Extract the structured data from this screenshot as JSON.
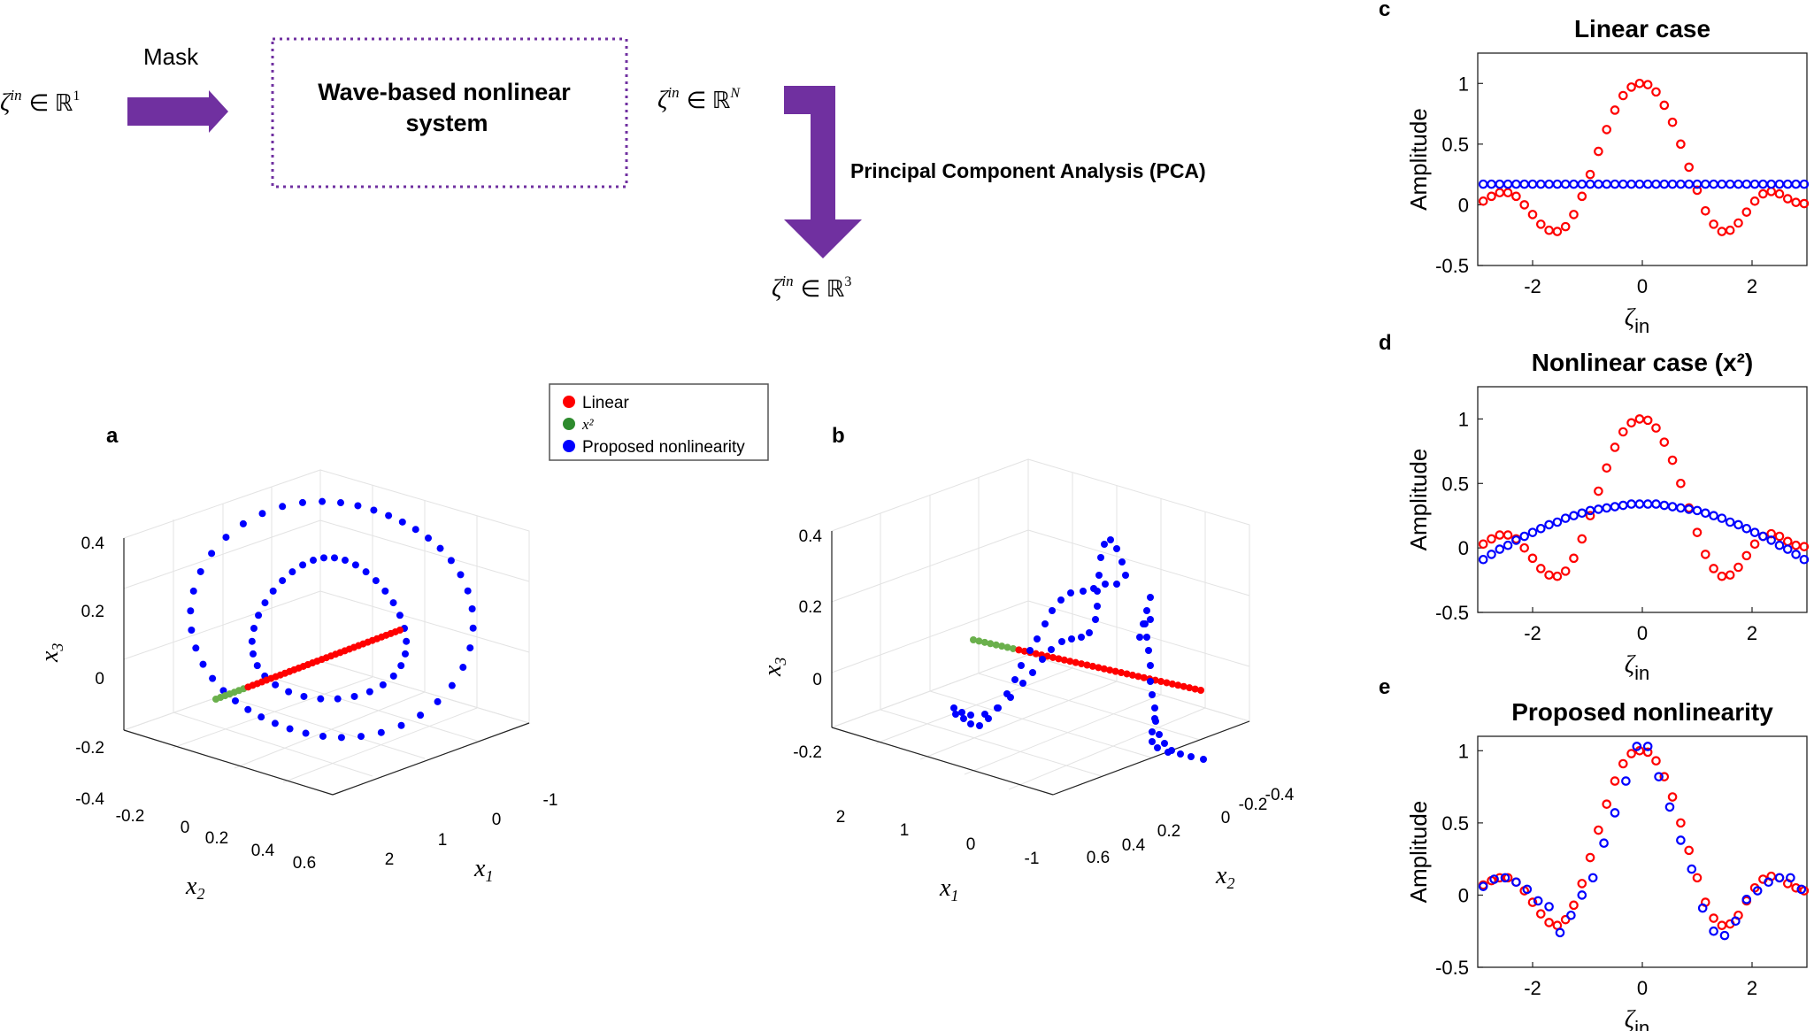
{
  "flow": {
    "input_label": "ζin ∈ ℝ1",
    "input_symbol": "ζ",
    "input_sup": "in",
    "input_space": "∈ ℝ",
    "input_dim": "1",
    "mask_label": "Mask",
    "system_title_line1": "Wave-based nonlinear",
    "system_title_line2": "system",
    "output_symbol": "ζ",
    "output_sup": "in",
    "output_space": "∈ ℝ",
    "output_dim": "N",
    "pca_label": "Principal Component Analysis (PCA)",
    "reduced_symbol": "ζ",
    "reduced_sup": "in",
    "reduced_space": "∈  ℝ",
    "reduced_dim": "3",
    "arrow_color": "#7030a0"
  },
  "legend": {
    "items": [
      {
        "label": "Linear",
        "color": "#ff0000"
      },
      {
        "label": "x²",
        "color": "#2e8b2e"
      },
      {
        "label": "Proposed nonlinearity",
        "color": "#0000ff"
      }
    ]
  },
  "panels": {
    "a": {
      "letter": "a",
      "x3_ticks": [
        "0.4",
        "0.2",
        "0",
        "-0.2",
        "-0.4"
      ],
      "x2_ticks": [
        "-0.2",
        "0",
        "0.2",
        "0.4",
        "0.6"
      ],
      "x1_ticks": [
        "2",
        "1",
        "0",
        "-1"
      ],
      "x1_label": "x",
      "x1_sub": "1",
      "x2_label": "x",
      "x2_sub": "2",
      "x3_label": "x",
      "x3_sub": "3"
    },
    "b": {
      "letter": "b",
      "x3_ticks": [
        "0.4",
        "0.2",
        "0",
        "-0.2"
      ],
      "x1_ticks": [
        "2",
        "1",
        "0",
        "-1"
      ],
      "x2_ticks": [
        "0.6",
        "0.4",
        "0.2",
        "0",
        "-0.2",
        "-0.4"
      ],
      "x1_label": "x",
      "x1_sub": "1",
      "x2_label": "x",
      "x2_sub": "2",
      "x3_label": "x",
      "x3_sub": "3"
    }
  },
  "chart_data": [
    {
      "letter": "c",
      "type": "scatter",
      "title": "Linear case",
      "xlabel": "ζ",
      "xlabel_sub": "in",
      "ylabel": "Amplitude",
      "xlim": [
        -3,
        3
      ],
      "ylim": [
        -0.5,
        1.25
      ],
      "xticks": [
        -2,
        0,
        2
      ],
      "yticks": [
        1,
        0.5,
        0,
        -0.5
      ],
      "ytick_labels": [
        "1",
        "0.5",
        "0",
        "-0.5"
      ],
      "xtick_labels": [
        "-2",
        "0",
        "2"
      ],
      "series": [
        {
          "name": "Linear",
          "color": "#ff0000",
          "x": [
            -2.9,
            -2.75,
            -2.6,
            -2.45,
            -2.3,
            -2.15,
            -2.0,
            -1.85,
            -1.7,
            -1.55,
            -1.4,
            -1.25,
            -1.1,
            -0.95,
            -0.8,
            -0.65,
            -0.5,
            -0.35,
            -0.2,
            -0.05,
            0.1,
            0.25,
            0.4,
            0.55,
            0.7,
            0.85,
            1.0,
            1.15,
            1.3,
            1.45,
            1.6,
            1.75,
            1.9,
            2.05,
            2.2,
            2.35,
            2.5,
            2.65,
            2.8,
            2.95
          ],
          "y": [
            0.03,
            0.07,
            0.1,
            0.1,
            0.07,
            0.0,
            -0.08,
            -0.16,
            -0.21,
            -0.22,
            -0.18,
            -0.08,
            0.07,
            0.25,
            0.44,
            0.62,
            0.78,
            0.9,
            0.97,
            1.0,
            0.99,
            0.93,
            0.82,
            0.68,
            0.5,
            0.31,
            0.12,
            -0.05,
            -0.16,
            -0.22,
            -0.21,
            -0.15,
            -0.06,
            0.03,
            0.09,
            0.11,
            0.09,
            0.05,
            0.02,
            0.01
          ]
        },
        {
          "name": "Proposed",
          "color": "#0000ff",
          "x": [
            -2.9,
            -2.75,
            -2.6,
            -2.45,
            -2.3,
            -2.15,
            -2.0,
            -1.85,
            -1.7,
            -1.55,
            -1.4,
            -1.25,
            -1.1,
            -0.95,
            -0.8,
            -0.65,
            -0.5,
            -0.35,
            -0.2,
            -0.05,
            0.1,
            0.25,
            0.4,
            0.55,
            0.7,
            0.85,
            1.0,
            1.15,
            1.3,
            1.45,
            1.6,
            1.75,
            1.9,
            2.05,
            2.2,
            2.35,
            2.5,
            2.65,
            2.8,
            2.95
          ],
          "y": [
            0.17,
            0.17,
            0.17,
            0.17,
            0.17,
            0.17,
            0.17,
            0.17,
            0.17,
            0.17,
            0.17,
            0.17,
            0.17,
            0.17,
            0.17,
            0.17,
            0.17,
            0.17,
            0.17,
            0.17,
            0.17,
            0.17,
            0.17,
            0.17,
            0.17,
            0.17,
            0.17,
            0.17,
            0.17,
            0.17,
            0.17,
            0.17,
            0.17,
            0.17,
            0.17,
            0.17,
            0.17,
            0.17,
            0.17,
            0.17
          ]
        }
      ]
    },
    {
      "letter": "d",
      "type": "scatter",
      "title": "Nonlinear case (x²)",
      "xlabel": "ζ",
      "xlabel_sub": "in",
      "ylabel": "Amplitude",
      "xlim": [
        -3,
        3
      ],
      "ylim": [
        -0.5,
        1.25
      ],
      "xticks": [
        -2,
        0,
        2
      ],
      "yticks": [
        1,
        0.5,
        0,
        -0.5
      ],
      "ytick_labels": [
        "1",
        "0.5",
        "0",
        "-0.5"
      ],
      "xtick_labels": [
        "-2",
        "0",
        "2"
      ],
      "series": [
        {
          "name": "Linear",
          "color": "#ff0000",
          "x": [
            -2.9,
            -2.75,
            -2.6,
            -2.45,
            -2.3,
            -2.15,
            -2.0,
            -1.85,
            -1.7,
            -1.55,
            -1.4,
            -1.25,
            -1.1,
            -0.95,
            -0.8,
            -0.65,
            -0.5,
            -0.35,
            -0.2,
            -0.05,
            0.1,
            0.25,
            0.4,
            0.55,
            0.7,
            0.85,
            1.0,
            1.15,
            1.3,
            1.45,
            1.6,
            1.75,
            1.9,
            2.05,
            2.2,
            2.35,
            2.5,
            2.65,
            2.8,
            2.95
          ],
          "y": [
            0.03,
            0.07,
            0.1,
            0.1,
            0.07,
            0.0,
            -0.08,
            -0.16,
            -0.21,
            -0.22,
            -0.18,
            -0.08,
            0.07,
            0.25,
            0.44,
            0.62,
            0.78,
            0.9,
            0.97,
            1.0,
            0.99,
            0.93,
            0.82,
            0.68,
            0.5,
            0.31,
            0.12,
            -0.05,
            -0.16,
            -0.22,
            -0.21,
            -0.15,
            -0.06,
            0.03,
            0.09,
            0.11,
            0.09,
            0.05,
            0.02,
            0.01
          ]
        },
        {
          "name": "x²",
          "color": "#0000ff",
          "x": [
            -2.9,
            -2.75,
            -2.6,
            -2.45,
            -2.3,
            -2.15,
            -2.0,
            -1.85,
            -1.7,
            -1.55,
            -1.4,
            -1.25,
            -1.1,
            -0.95,
            -0.8,
            -0.65,
            -0.5,
            -0.35,
            -0.2,
            -0.05,
            0.1,
            0.25,
            0.4,
            0.55,
            0.7,
            0.85,
            1.0,
            1.15,
            1.3,
            1.45,
            1.6,
            1.75,
            1.9,
            2.05,
            2.2,
            2.35,
            2.5,
            2.65,
            2.8,
            2.95
          ],
          "y": [
            -0.09,
            -0.05,
            -0.01,
            0.02,
            0.06,
            0.09,
            0.12,
            0.15,
            0.18,
            0.2,
            0.23,
            0.25,
            0.27,
            0.29,
            0.3,
            0.31,
            0.32,
            0.33,
            0.34,
            0.34,
            0.34,
            0.34,
            0.33,
            0.32,
            0.31,
            0.3,
            0.29,
            0.27,
            0.25,
            0.23,
            0.2,
            0.18,
            0.15,
            0.12,
            0.09,
            0.06,
            0.02,
            -0.01,
            -0.05,
            -0.09
          ]
        }
      ]
    },
    {
      "letter": "e",
      "type": "scatter",
      "title": "Proposed nonlinearity",
      "xlabel": "ζ",
      "xlabel_sub": "in",
      "ylabel": "Amplitude",
      "xlim": [
        -3,
        3
      ],
      "ylim": [
        -0.5,
        1.1
      ],
      "xticks": [
        -2,
        0,
        2
      ],
      "yticks": [
        1,
        0.5,
        0,
        -0.5
      ],
      "ytick_labels": [
        "1",
        "0.5",
        "0",
        "-0.5"
      ],
      "xtick_labels": [
        "-2",
        "0",
        "2"
      ],
      "series": [
        {
          "name": "Linear",
          "color": "#ff0000",
          "x": [
            -2.9,
            -2.75,
            -2.6,
            -2.45,
            -2.3,
            -2.15,
            -2.0,
            -1.85,
            -1.7,
            -1.55,
            -1.4,
            -1.25,
            -1.1,
            -0.95,
            -0.8,
            -0.65,
            -0.5,
            -0.35,
            -0.2,
            -0.05,
            0.1,
            0.25,
            0.4,
            0.55,
            0.7,
            0.85,
            1.0,
            1.15,
            1.3,
            1.45,
            1.6,
            1.75,
            1.9,
            2.05,
            2.2,
            2.35,
            2.5,
            2.65,
            2.8,
            2.95
          ],
          "y": [
            0.07,
            0.1,
            0.12,
            0.12,
            0.09,
            0.03,
            -0.05,
            -0.13,
            -0.19,
            -0.21,
            -0.17,
            -0.07,
            0.08,
            0.26,
            0.45,
            0.63,
            0.79,
            0.91,
            0.98,
            1.0,
            0.99,
            0.93,
            0.82,
            0.68,
            0.5,
            0.31,
            0.12,
            -0.05,
            -0.16,
            -0.21,
            -0.2,
            -0.14,
            -0.04,
            0.05,
            0.11,
            0.13,
            0.12,
            0.08,
            0.05,
            0.03
          ]
        },
        {
          "name": "Proposed",
          "color": "#0000ff",
          "x": [
            -2.9,
            -2.7,
            -2.5,
            -2.3,
            -2.1,
            -1.9,
            -1.7,
            -1.5,
            -1.3,
            -1.1,
            -0.9,
            -0.7,
            -0.5,
            -0.3,
            -0.1,
            0.1,
            0.3,
            0.5,
            0.7,
            0.9,
            1.1,
            1.3,
            1.5,
            1.7,
            1.9,
            2.1,
            2.3,
            2.5,
            2.7,
            2.9
          ],
          "y": [
            0.06,
            0.11,
            0.12,
            0.09,
            0.04,
            -0.04,
            -0.08,
            -0.26,
            -0.14,
            0.0,
            0.12,
            0.36,
            0.57,
            0.79,
            1.03,
            1.03,
            0.82,
            0.61,
            0.38,
            0.18,
            -0.09,
            -0.25,
            -0.28,
            -0.18,
            -0.03,
            0.03,
            0.09,
            0.12,
            0.12,
            0.04
          ]
        }
      ]
    }
  ]
}
